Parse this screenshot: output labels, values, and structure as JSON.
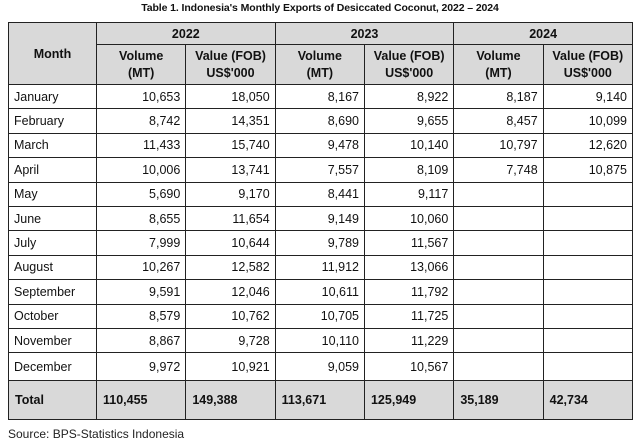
{
  "title": "Table 1. Indonesia's Monthly Exports of Desiccated Coconut, 2022 – 2024",
  "header": {
    "month": "Month",
    "years": [
      "2022",
      "2023",
      "2024"
    ],
    "volume_line1": "Volume",
    "volume_line2": "(MT)",
    "value_line1": "Value (FOB)",
    "value_line2": "US$'000"
  },
  "rows": [
    {
      "month": "January",
      "v2022": "10,653",
      "f2022": "18,050",
      "v2023": "8,167",
      "f2023": "8,922",
      "v2024": "8,187",
      "f2024": "9,140"
    },
    {
      "month": "February",
      "v2022": "8,742",
      "f2022": "14,351",
      "v2023": "8,690",
      "f2023": "9,655",
      "v2024": "8,457",
      "f2024": "10,099"
    },
    {
      "month": "March",
      "v2022": "11,433",
      "f2022": "15,740",
      "v2023": "9,478",
      "f2023": "10,140",
      "v2024": "10,797",
      "f2024": "12,620"
    },
    {
      "month": "April",
      "v2022": "10,006",
      "f2022": "13,741",
      "v2023": "7,557",
      "f2023": "8,109",
      "v2024": "7,748",
      "f2024": "10,875"
    },
    {
      "month": "May",
      "v2022": "5,690",
      "f2022": "9,170",
      "v2023": "8,441",
      "f2023": "9,117",
      "v2024": "",
      "f2024": ""
    },
    {
      "month": "June",
      "v2022": "8,655",
      "f2022": "11,654",
      "v2023": "9,149",
      "f2023": "10,060",
      "v2024": "",
      "f2024": ""
    },
    {
      "month": "July",
      "v2022": "7,999",
      "f2022": "10,644",
      "v2023": "9,789",
      "f2023": "11,567",
      "v2024": "",
      "f2024": ""
    },
    {
      "month": "August",
      "v2022": "10,267",
      "f2022": "12,582",
      "v2023": "11,912",
      "f2023": "13,066",
      "v2024": "",
      "f2024": ""
    },
    {
      "month": "September",
      "v2022": "9,591",
      "f2022": "12,046",
      "v2023": "10,611",
      "f2023": "11,792",
      "v2024": "",
      "f2024": ""
    },
    {
      "month": "October",
      "v2022": "8,579",
      "f2022": "10,762",
      "v2023": "10,705",
      "f2023": "11,725",
      "v2024": "",
      "f2024": ""
    },
    {
      "month": "November",
      "v2022": "8,867",
      "f2022": "9,728",
      "v2023": "10,110",
      "f2023": "11,229",
      "v2024": "",
      "f2024": ""
    },
    {
      "month": "December",
      "v2022": "9,972",
      "f2022": "10,921",
      "v2023": "9,059",
      "f2023": "10,567",
      "v2024": "",
      "f2024": ""
    }
  ],
  "total": {
    "label": "Total",
    "v2022": "110,455",
    "f2022": "149,388",
    "v2023": "113,671",
    "f2023": "125,949",
    "v2024": "35,189",
    "f2024": "42,734"
  },
  "source": "Source: BPS-Statistics Indonesia",
  "colors": {
    "header_fill": "#d9d9d9",
    "border": "#222222"
  }
}
